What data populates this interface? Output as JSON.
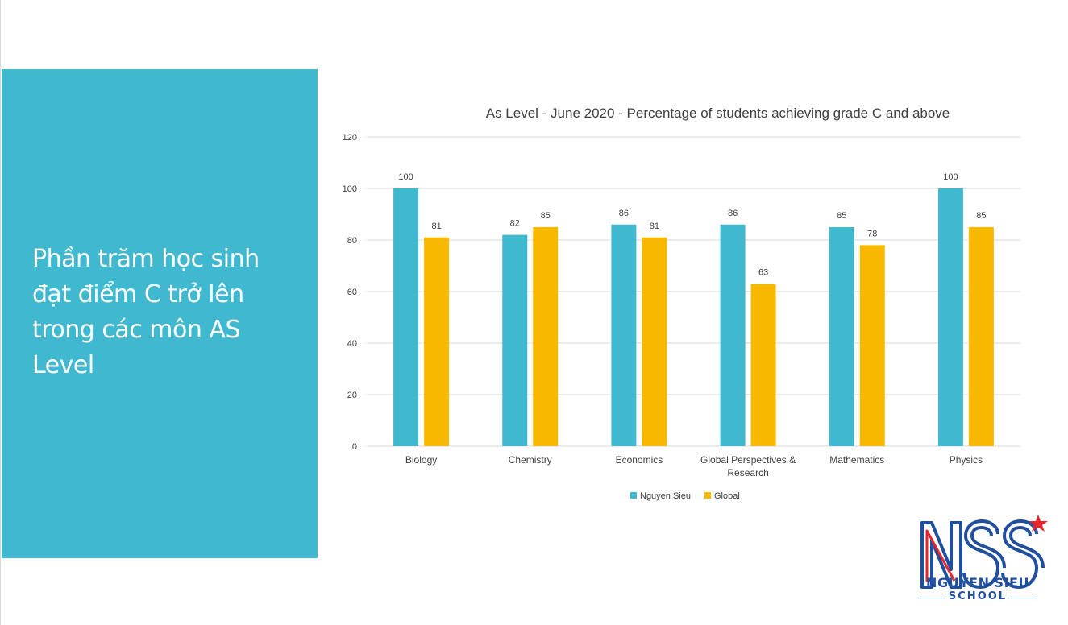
{
  "slide": {
    "heading": "Phần trăm học sinh đạt điểm C trở lên trong các môn AS Level",
    "panel_color": "#40b9d0"
  },
  "logo": {
    "mark": "NSS",
    "name": "NGUYEN SIEU",
    "sub": "SCHOOL",
    "icon": "star-icon"
  },
  "chart_data": {
    "type": "bar",
    "title": "As  Level - June 2020 - Percentage of students achieving grade C and above",
    "categories": [
      "Biology",
      "Chemistry",
      "Economics",
      "Global Perspectives & Research",
      "Mathematics",
      "Physics"
    ],
    "category_lines": [
      [
        "Biology"
      ],
      [
        "Chemistry"
      ],
      [
        "Economics"
      ],
      [
        "Global Perspectives &",
        "Research"
      ],
      [
        "Mathematics"
      ],
      [
        "Physics"
      ]
    ],
    "series": [
      {
        "name": "Nguyen Sieu",
        "color": "#40b9d0",
        "values": [
          100,
          82,
          86,
          86,
          85,
          100
        ]
      },
      {
        "name": "Global",
        "color": "#f9b800",
        "values": [
          81,
          85,
          81,
          63,
          78,
          85
        ]
      }
    ],
    "ylim": [
      0,
      120
    ],
    "yticks": [
      0,
      20,
      40,
      60,
      80,
      100,
      120
    ],
    "xlabel": "",
    "ylabel": "",
    "grid": true,
    "legend": "bottom"
  }
}
